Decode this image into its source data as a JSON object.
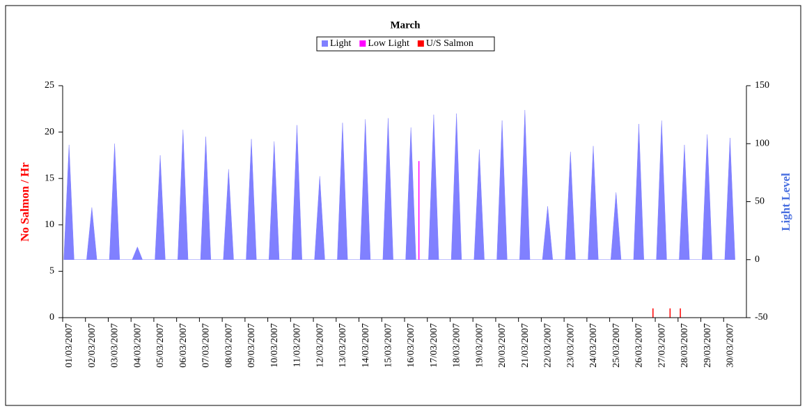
{
  "chart_data": {
    "type": "area-bar",
    "title": "March",
    "y_label": "No Salmon / Hr",
    "y2_label": "Light Level",
    "xlim": [
      0,
      30
    ],
    "xticks": [
      {
        "value": 0,
        "label": "01/03/2007"
      },
      {
        "value": 1,
        "label": "02/03/2007"
      },
      {
        "value": 2,
        "label": "03/03/2007"
      },
      {
        "value": 3,
        "label": "04/03/2007"
      },
      {
        "value": 4,
        "label": "05/03/2007"
      },
      {
        "value": 5,
        "label": "06/03/2007"
      },
      {
        "value": 6,
        "label": "07/03/2007"
      },
      {
        "value": 7,
        "label": "08/03/2007"
      },
      {
        "value": 8,
        "label": "09/03/2007"
      },
      {
        "value": 9,
        "label": "10/03/2007"
      },
      {
        "value": 10,
        "label": "11/03/2007"
      },
      {
        "value": 11,
        "label": "12/03/2007"
      },
      {
        "value": 12,
        "label": "13/03/2007"
      },
      {
        "value": 13,
        "label": "14/03/2007"
      },
      {
        "value": 14,
        "label": "15/03/2007"
      },
      {
        "value": 15,
        "label": "16/03/2007"
      },
      {
        "value": 16,
        "label": "17/03/2007"
      },
      {
        "value": 17,
        "label": "18/03/2007"
      },
      {
        "value": 18,
        "label": "19/03/2007"
      },
      {
        "value": 19,
        "label": "20/03/2007"
      },
      {
        "value": 20,
        "label": "21/03/2007"
      },
      {
        "value": 21,
        "label": "22/03/2007"
      },
      {
        "value": 22,
        "label": "23/03/2007"
      },
      {
        "value": 23,
        "label": "24/03/2007"
      },
      {
        "value": 24,
        "label": "25/03/2007"
      },
      {
        "value": 25,
        "label": "26/03/2007"
      },
      {
        "value": 26,
        "label": "27/03/2007"
      },
      {
        "value": 27,
        "label": "28/03/2007"
      },
      {
        "value": 28,
        "label": "29/03/2007"
      },
      {
        "value": 29,
        "label": "30/03/2007"
      }
    ],
    "ylim": [
      0,
      25
    ],
    "yticks": [
      0,
      5,
      10,
      15,
      20,
      25
    ],
    "y2lim": [
      -50,
      150
    ],
    "y2ticks": [
      -50,
      0,
      50,
      100,
      150
    ],
    "series": [
      {
        "name": "Light",
        "color": "#8080ff",
        "axis": "y2",
        "kind": "area",
        "x": [
          0.05,
          0.28,
          0.5,
          1.05,
          1.28,
          1.5,
          2.05,
          2.28,
          2.5,
          3.05,
          3.28,
          3.5,
          4.05,
          4.28,
          4.5,
          5.05,
          5.28,
          5.5,
          6.05,
          6.28,
          6.5,
          7.05,
          7.28,
          7.5,
          8.05,
          8.28,
          8.5,
          9.05,
          9.28,
          9.5,
          10.05,
          10.28,
          10.5,
          11.05,
          11.28,
          11.5,
          12.05,
          12.28,
          12.5,
          13.05,
          13.28,
          13.5,
          14.05,
          14.28,
          14.5,
          15.05,
          15.28,
          15.5,
          16.05,
          16.28,
          16.5,
          17.05,
          17.28,
          17.5,
          18.05,
          18.28,
          18.5,
          19.05,
          19.28,
          19.5,
          20.05,
          20.28,
          20.5,
          21.05,
          21.28,
          21.5,
          22.05,
          22.28,
          22.5,
          23.05,
          23.28,
          23.5,
          24.05,
          24.28,
          24.5,
          25.05,
          25.28,
          25.5,
          26.05,
          26.28,
          26.5,
          27.05,
          27.28,
          27.5,
          28.05,
          28.28,
          28.5,
          29.05,
          29.28,
          29.5
        ],
        "values": [
          0,
          99,
          0,
          0,
          45,
          0,
          0,
          100,
          0,
          0,
          11,
          0,
          0,
          90,
          0,
          0,
          112,
          0,
          0,
          106,
          0,
          0,
          78,
          0,
          0,
          104,
          0,
          0,
          102,
          0,
          0,
          116,
          0,
          0,
          72,
          0,
          0,
          118,
          0,
          0,
          121,
          0,
          0,
          122,
          0,
          0,
          114,
          0,
          0,
          125,
          0,
          0,
          126,
          0,
          0,
          95,
          0,
          0,
          120,
          0,
          0,
          129,
          0,
          0,
          46,
          0,
          0,
          93,
          0,
          0,
          98,
          0,
          0,
          58,
          0,
          0,
          117,
          0,
          0,
          120,
          0,
          0,
          99,
          0,
          0,
          108,
          0,
          0,
          105,
          0
        ]
      },
      {
        "name": "Low Light",
        "color": "#ff00ff",
        "axis": "y2",
        "kind": "bar",
        "x": [
          15.63
        ],
        "values": [
          85
        ]
      },
      {
        "name": "U/S Salmon",
        "color": "#ff0000",
        "axis": "y",
        "kind": "bar",
        "x": [
          25.9,
          26.65,
          27.1
        ],
        "values": [
          1,
          1,
          1
        ]
      }
    ]
  }
}
